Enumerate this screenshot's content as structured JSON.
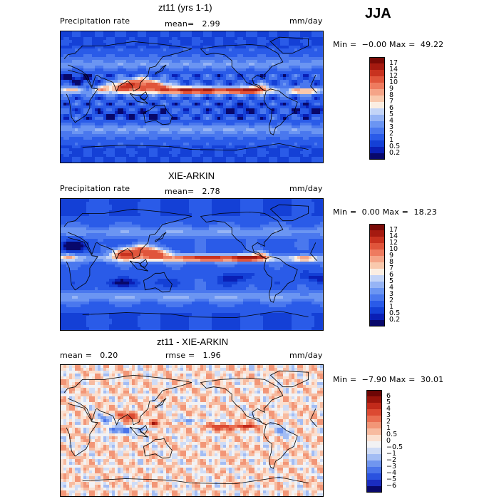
{
  "season": "JJA",
  "palettes": {
    "positive": [
      "#08086b",
      "#0a1fb5",
      "#1440d6",
      "#2a5be8",
      "#4a78ee",
      "#6b95f2",
      "#96b4f5",
      "#c3d4f7",
      "#fbeee2",
      "#f9c9ad",
      "#f5a487",
      "#ee7b5f",
      "#e0553b",
      "#c8321f",
      "#a51a10",
      "#7a0a06"
    ],
    "diff": [
      "#08086b",
      "#1a2cc0",
      "#2a52df",
      "#4a74ea",
      "#7096ef",
      "#a3bdf4",
      "#cfdcf6",
      "#f2f2f4",
      "#fbe0d0",
      "#f7bba0",
      "#f29677",
      "#ea6f52",
      "#dc4a32",
      "#c22a1a",
      "#9a140b",
      "#6e0605"
    ]
  },
  "panels": [
    {
      "title": "zt11 (yrs 1-1)",
      "field_label": "Precipitation rate",
      "stat1": "mean=   2.99",
      "units": "mm/day",
      "minmax": "Min =  −0.00 Max =  49.22",
      "colorbar_ticks": [
        "17",
        "14",
        "12",
        "10",
        "9",
        "8",
        "7",
        "6",
        "5",
        "4",
        "3",
        "2",
        "1",
        "0.5",
        "0.2"
      ],
      "palette": "positive"
    },
    {
      "title": "XIE-ARKIN",
      "field_label": "Precipitation rate",
      "stat1": "mean=   2.78",
      "units": "mm/day",
      "minmax": "Min =  0.00 Max =  18.23",
      "colorbar_ticks": [
        "17",
        "14",
        "12",
        "10",
        "9",
        "8",
        "7",
        "6",
        "5",
        "4",
        "3",
        "2",
        "1",
        "0.5",
        "0.2"
      ],
      "palette": "positive"
    },
    {
      "title": "zt11 - XIE-ARKIN",
      "field_label": "mean =   0.20",
      "stat1": "rmse =   1.96",
      "units": "mm/day",
      "minmax": "Min =  −7.90 Max =  30.01",
      "colorbar_ticks": [
        "6",
        "5",
        "4",
        "3",
        "2",
        "1",
        "0.5",
        "0",
        "−0.5",
        "−1",
        "−2",
        "−3",
        "−4",
        "−5",
        "−6"
      ],
      "palette": "diff"
    }
  ],
  "chart_data": [
    {
      "type": "heatmap",
      "title": "zt11 (yrs 1-1)",
      "subtitle": "Precipitation rate",
      "units": "mm/day",
      "mean": 2.99,
      "min": -0.0,
      "max": 49.22,
      "levels": [
        0.2,
        0.5,
        1,
        2,
        3,
        4,
        5,
        6,
        7,
        8,
        9,
        10,
        12,
        14,
        17
      ]
    },
    {
      "type": "heatmap",
      "title": "XIE-ARKIN",
      "subtitle": "Precipitation rate",
      "units": "mm/day",
      "mean": 2.78,
      "min": 0.0,
      "max": 18.23,
      "levels": [
        0.2,
        0.5,
        1,
        2,
        3,
        4,
        5,
        6,
        7,
        8,
        9,
        10,
        12,
        14,
        17
      ]
    },
    {
      "type": "heatmap",
      "title": "zt11 - XIE-ARKIN",
      "units": "mm/day",
      "mean": 0.2,
      "rmse": 1.96,
      "min": -7.9,
      "max": 30.01,
      "levels": [
        -6,
        -5,
        -4,
        -3,
        -2,
        -1,
        -0.5,
        0,
        0.5,
        1,
        2,
        3,
        4,
        5,
        6
      ]
    }
  ]
}
